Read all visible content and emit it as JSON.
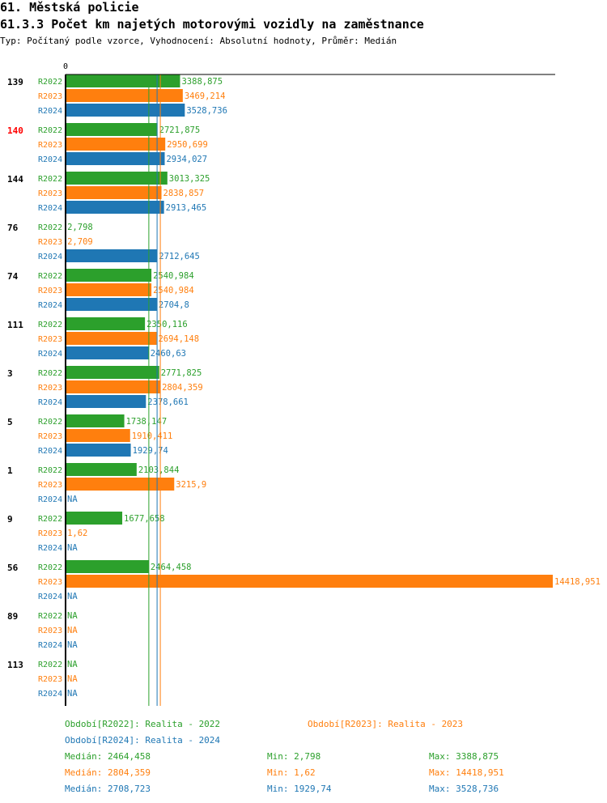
{
  "header": {
    "title": "61. Městská policie",
    "subtitle": "61.3.3 Počet km najetých motorovými vozidly na zaměstnance",
    "meta": "Typ: Počítaný podle vzorce, Vyhodnocení: Absolutní hodnoty, Průměr: Medián"
  },
  "colors": {
    "R2022": "#2ca02c",
    "R2023": "#ff7f0e",
    "R2024": "#1f77b4",
    "highlight": "#ff0000"
  },
  "chart_data": {
    "type": "bar",
    "orientation": "horizontal",
    "title": "61.3.3 Počet km najetých motorovými vozidly na zaměstnance",
    "x_axis_origin_label": "0",
    "xlim": [
      0,
      14418.951
    ],
    "series_names": [
      "R2022",
      "R2023",
      "R2024"
    ],
    "groups": [
      {
        "label": "139",
        "highlight": false,
        "values": [
          3388.875,
          3469.214,
          3528.736
        ],
        "labels": [
          "3388,875",
          "3469,214",
          "3528,736"
        ]
      },
      {
        "label": "140",
        "highlight": true,
        "values": [
          2721.875,
          2950.699,
          2934.027
        ],
        "labels": [
          "2721,875",
          "2950,699",
          "2934,027"
        ]
      },
      {
        "label": "144",
        "highlight": false,
        "values": [
          3013.325,
          2838.857,
          2913.465
        ],
        "labels": [
          "3013,325",
          "2838,857",
          "2913,465"
        ]
      },
      {
        "label": "76",
        "highlight": false,
        "values": [
          2.798,
          2.709,
          2712.645
        ],
        "labels": [
          "2,798",
          "2,709",
          "2712,645"
        ]
      },
      {
        "label": "74",
        "highlight": false,
        "values": [
          2540.984,
          2540.984,
          2704.8
        ],
        "labels": [
          "2540,984",
          "2540,984",
          "2704,8"
        ]
      },
      {
        "label": "111",
        "highlight": false,
        "values": [
          2350.116,
          2694.148,
          2460.63
        ],
        "labels": [
          "2350,116",
          "2694,148",
          "2460,63"
        ]
      },
      {
        "label": "3",
        "highlight": false,
        "values": [
          2771.825,
          2804.359,
          2378.661
        ],
        "labels": [
          "2771,825",
          "2804,359",
          "2378,661"
        ]
      },
      {
        "label": "5",
        "highlight": false,
        "values": [
          1738.147,
          1910.411,
          1929.74
        ],
        "labels": [
          "1738,147",
          "1910,411",
          "1929,74"
        ]
      },
      {
        "label": "1",
        "highlight": false,
        "values": [
          2103.844,
          3215.9,
          null
        ],
        "labels": [
          "2103,844",
          "3215,9",
          "NA"
        ]
      },
      {
        "label": "9",
        "highlight": false,
        "values": [
          1677.658,
          1.62,
          null
        ],
        "labels": [
          "1677,658",
          "1,62",
          "NA"
        ]
      },
      {
        "label": "56",
        "highlight": false,
        "values": [
          2464.458,
          14418.951,
          null
        ],
        "labels": [
          "2464,458",
          "14418,951",
          "NA"
        ]
      },
      {
        "label": "89",
        "highlight": false,
        "values": [
          null,
          null,
          null
        ],
        "labels": [
          "NA",
          "NA",
          "NA"
        ]
      },
      {
        "label": "113",
        "highlight": false,
        "values": [
          null,
          null,
          null
        ],
        "labels": [
          "NA",
          "NA",
          "NA"
        ]
      }
    ],
    "medians": [
      2464.458,
      2804.359,
      2708.723
    ]
  },
  "legend": {
    "r2022": "Období[R2022]: Realita - 2022",
    "r2023": "Období[R2023]: Realita - 2023",
    "r2024": "Období[R2024]: Realita - 2024",
    "stats": [
      {
        "median": "Medián: 2464,458",
        "min": "Min: 2,798",
        "max": "Max: 3388,875"
      },
      {
        "median": "Medián: 2804,359",
        "min": "Min: 1,62",
        "max": "Max: 14418,951"
      },
      {
        "median": "Medián: 2708,723",
        "min": "Min: 1929,74",
        "max": "Max: 3528,736"
      }
    ]
  }
}
